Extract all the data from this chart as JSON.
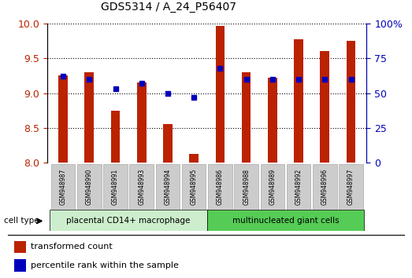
{
  "title": "GDS5314 / A_24_P56407",
  "samples": [
    "GSM948987",
    "GSM948990",
    "GSM948991",
    "GSM948993",
    "GSM948994",
    "GSM948995",
    "GSM948986",
    "GSM948988",
    "GSM948989",
    "GSM948992",
    "GSM948996",
    "GSM948997"
  ],
  "red_values": [
    9.25,
    9.3,
    8.75,
    9.15,
    8.55,
    8.12,
    9.97,
    9.3,
    9.22,
    9.78,
    9.6,
    9.75
  ],
  "blue_pct": [
    62,
    60,
    53,
    57,
    50,
    47,
    68,
    60,
    60,
    60,
    60,
    60
  ],
  "ylim_left": [
    8.0,
    10.0
  ],
  "ylim_right": [
    0,
    100
  ],
  "y_ticks_left": [
    8.0,
    8.5,
    9.0,
    9.5,
    10.0
  ],
  "y_ticks_right": [
    0,
    25,
    50,
    75,
    100
  ],
  "group1_label": "placental CD14+ macrophage",
  "group2_label": "multinucleated giant cells",
  "group1_count": 6,
  "legend1": "transformed count",
  "legend2": "percentile rank within the sample",
  "bar_color": "#bb2200",
  "marker_color": "#0000bb",
  "group1_bg": "#bbddbb",
  "group2_bg": "#55cc55",
  "tick_bg": "#cccccc",
  "cell_type_label": "cell type"
}
